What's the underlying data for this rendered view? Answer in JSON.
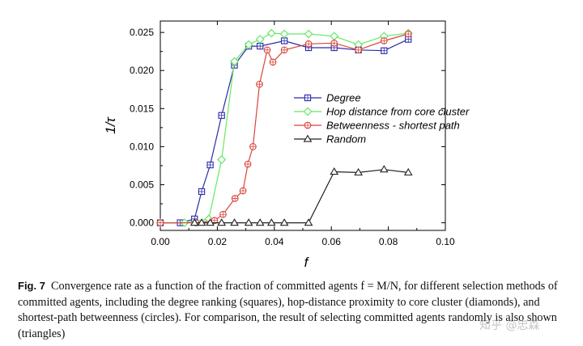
{
  "chart_data": {
    "type": "line",
    "xlabel": "f",
    "ylabel": "1/τ",
    "xlim": [
      0,
      0.1
    ],
    "ylim": [
      -0.001,
      0.0265
    ],
    "x_ticks": [
      "0.00",
      "0.02",
      "0.04",
      "0.06",
      "0.08",
      "0.10"
    ],
    "y_ticks": [
      "0.000",
      "0.005",
      "0.010",
      "0.015",
      "0.020",
      "0.025"
    ],
    "legend_position": "center-right",
    "series": [
      {
        "name": "Degree",
        "marker": "square",
        "color": "#2a2aa8",
        "x": [
          0,
          0.007,
          0.012,
          0.0145,
          0.0175,
          0.0215,
          0.026,
          0.031,
          0.035,
          0.0435,
          0.052,
          0.061,
          0.0695,
          0.0785,
          0.087
        ],
        "y": [
          0,
          0,
          0.0005,
          0.0041,
          0.0076,
          0.0141,
          0.0207,
          0.0232,
          0.0232,
          0.0239,
          0.023,
          0.023,
          0.0227,
          0.0226,
          0.0241
        ]
      },
      {
        "name": "Hop distance from core cluster",
        "marker": "diamond",
        "color": "#66e866",
        "x": [
          0,
          0.0085,
          0.017,
          0.0215,
          0.026,
          0.031,
          0.035,
          0.039,
          0.0435,
          0.052,
          0.061,
          0.0695,
          0.0785,
          0.087
        ],
        "y": [
          0,
          0,
          0.0005,
          0.0083,
          0.0212,
          0.0234,
          0.0241,
          0.0249,
          0.0248,
          0.0248,
          0.0245,
          0.0234,
          0.0245,
          0.0249
        ]
      },
      {
        "name": "Betweenness - shortest path",
        "marker": "circle",
        "color": "#d8453c",
        "x": [
          0,
          0.0125,
          0.019,
          0.022,
          0.0262,
          0.029,
          0.0307,
          0.0325,
          0.0348,
          0.0375,
          0.0395,
          0.0435,
          0.052,
          0.061,
          0.0695,
          0.0785,
          0.087
        ],
        "y": [
          0,
          0,
          0.0003,
          0.0011,
          0.0032,
          0.0042,
          0.0077,
          0.01,
          0.0182,
          0.0227,
          0.0211,
          0.0227,
          0.0235,
          0.0236,
          0.0227,
          0.0239,
          0.0248
        ]
      },
      {
        "name": "Random",
        "marker": "triangle",
        "color": "#222222",
        "x": [
          0.012,
          0.0145,
          0.0175,
          0.0215,
          0.026,
          0.031,
          0.035,
          0.039,
          0.0435,
          0.052,
          0.061,
          0.0695,
          0.0785,
          0.087
        ],
        "y": [
          0,
          0,
          0,
          0,
          0,
          0,
          0,
          0,
          0,
          0,
          0.0067,
          0.0066,
          0.007,
          0.0066
        ]
      }
    ]
  },
  "caption": {
    "label": "Fig. 7",
    "text": "Convergence rate as a function of the fraction of committed agents f = M/N, for different selection methods of committed agents, including the degree ranking (squares), hop-distance proximity to core cluster (diamonds), and shortest-path betweenness (circles). For comparison, the result of selecting committed agents randomly is also shown (triangles)"
  },
  "watermark": "知乎 @忠森"
}
